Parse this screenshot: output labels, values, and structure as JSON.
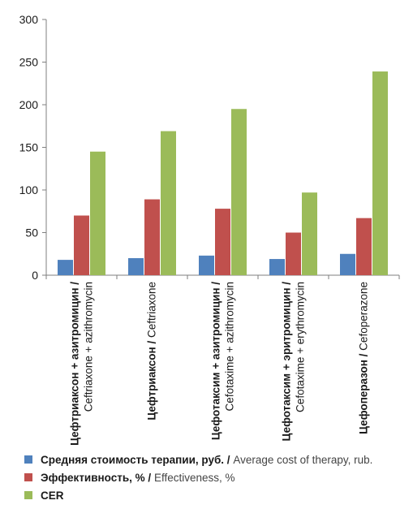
{
  "chart_data": {
    "type": "bar",
    "ylim": [
      0,
      300
    ],
    "yticks": [
      0,
      50,
      100,
      150,
      200,
      250,
      300
    ],
    "grid": false,
    "legend_placement": "bottom",
    "categories": [
      {
        "ru": "Цефтриаксон + азитромицин /",
        "en": "Ceftriaxone + azithromycin"
      },
      {
        "ru": "Цефтриаксон / ",
        "en": "Ceftriaxone"
      },
      {
        "ru": "Цефотаксим + азитромицин /",
        "en": "Cefotaxime + azithromycin"
      },
      {
        "ru": "Цефотаксим + эритромицин /",
        "en": "Cefotaxime + erythromycin"
      },
      {
        "ru": "Цефоперазон / ",
        "en": "Cefoperazone"
      }
    ],
    "series": [
      {
        "name_ru": "Средняя стоимость терапии, руб. / ",
        "name_en": "Average cost of therapy, rub.",
        "color": "#4F81BD",
        "values": [
          18,
          20,
          23,
          19,
          25
        ]
      },
      {
        "name_ru": "Эффективность, % / ",
        "name_en": "Effectiveness, %",
        "color": "#C0504D",
        "values": [
          70,
          89,
          78,
          50,
          67
        ]
      },
      {
        "name_ru": "CER",
        "name_en": "",
        "color": "#9BBB59",
        "values": [
          145,
          169,
          195,
          97,
          239
        ]
      }
    ]
  }
}
